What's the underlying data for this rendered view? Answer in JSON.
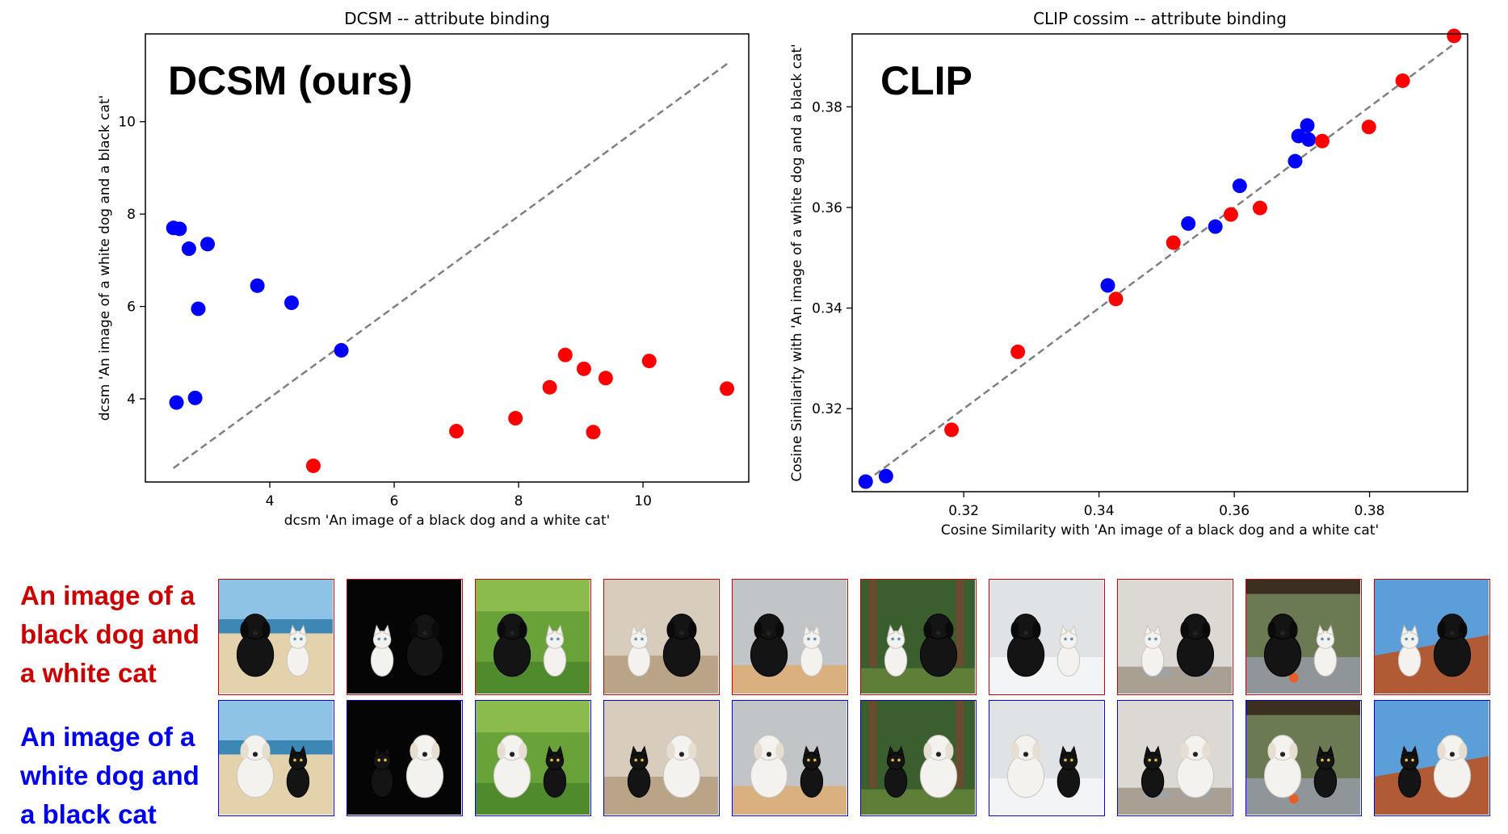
{
  "chart_data": [
    {
      "type": "scatter",
      "title": "DCSM -- attribute binding",
      "annotation": "DCSM (ours)",
      "xlabel": "dcsm 'An image of a black dog and a white cat'",
      "ylabel": "dcsm 'An image of a white dog and a black cat'",
      "xlim": [
        2.0,
        11.7
      ],
      "ylim": [
        2.2,
        11.9
      ],
      "xticks": [
        4,
        6,
        8,
        10
      ],
      "xtick_labels": [
        "4",
        "6",
        "8",
        "10"
      ],
      "yticks": [
        4,
        6,
        8,
        10
      ],
      "ytick_labels": [
        "4",
        "6",
        "8",
        "10"
      ],
      "diagonal": [
        [
          2.45,
          2.5
        ],
        [
          11.4,
          11.3
        ]
      ],
      "grid": false,
      "series": [
        {
          "color": "#0000ff",
          "x": [
            2.45,
            2.55,
            2.7,
            3.0,
            2.85,
            3.8,
            4.35,
            5.15,
            2.5,
            2.8
          ],
          "y": [
            7.7,
            7.68,
            7.25,
            7.35,
            5.95,
            6.45,
            6.08,
            5.05,
            3.92,
            4.02
          ]
        },
        {
          "color": "#ff0000",
          "x": [
            4.7,
            7.0,
            7.95,
            8.5,
            8.75,
            9.05,
            9.2,
            9.4,
            10.1,
            11.35
          ],
          "y": [
            2.55,
            3.3,
            3.58,
            4.25,
            4.95,
            4.65,
            3.28,
            4.45,
            4.82,
            4.22
          ]
        }
      ]
    },
    {
      "type": "scatter",
      "title": "CLIP cossim -- attribute binding",
      "annotation": "CLIP",
      "xlabel": "Cosine Similarity with 'An image of a black dog and a white cat'",
      "ylabel": "Cosine Similarity with 'An image of a white dog and a black cat'",
      "xlim": [
        0.3035,
        0.3945
      ],
      "ylim": [
        0.3035,
        0.3945
      ],
      "xticks": [
        0.32,
        0.34,
        0.36,
        0.38
      ],
      "xtick_labels": [
        "0.32",
        "0.34",
        "0.36",
        "0.38"
      ],
      "yticks": [
        0.32,
        0.34,
        0.36,
        0.38
      ],
      "ytick_labels": [
        "0.32",
        "0.34",
        "0.36",
        "0.38"
      ],
      "diagonal": [
        [
          0.3055,
          0.3055
        ],
        [
          0.3925,
          0.3925
        ]
      ],
      "grid": false,
      "series": [
        {
          "color": "#0000ff",
          "x": [
            0.3055,
            0.3085,
            0.3413,
            0.3532,
            0.3572,
            0.3608,
            0.369,
            0.3695,
            0.3708,
            0.371
          ],
          "y": [
            0.3055,
            0.3066,
            0.3445,
            0.3568,
            0.3562,
            0.3643,
            0.3692,
            0.3742,
            0.3763,
            0.3735
          ]
        },
        {
          "color": "#ff0000",
          "x": [
            0.3182,
            0.328,
            0.3425,
            0.351,
            0.3595,
            0.3638,
            0.373,
            0.3799,
            0.3849,
            0.3925
          ],
          "y": [
            0.3158,
            0.3313,
            0.3418,
            0.353,
            0.3586,
            0.3599,
            0.3732,
            0.376,
            0.3852,
            0.3941
          ]
        }
      ]
    }
  ],
  "captions": {
    "red": [
      "An image of a",
      "black dog and",
      "a white cat"
    ],
    "blue": [
      "An image of a",
      "white dog and",
      "a black cat"
    ]
  },
  "thumbnail_scenes": [
    "beach",
    "studio",
    "grass",
    "sofa",
    "table",
    "forest",
    "snow",
    "bowls",
    "cage",
    "roof"
  ],
  "colors": {
    "red": "#cc0000",
    "blue": "#0000ee"
  }
}
